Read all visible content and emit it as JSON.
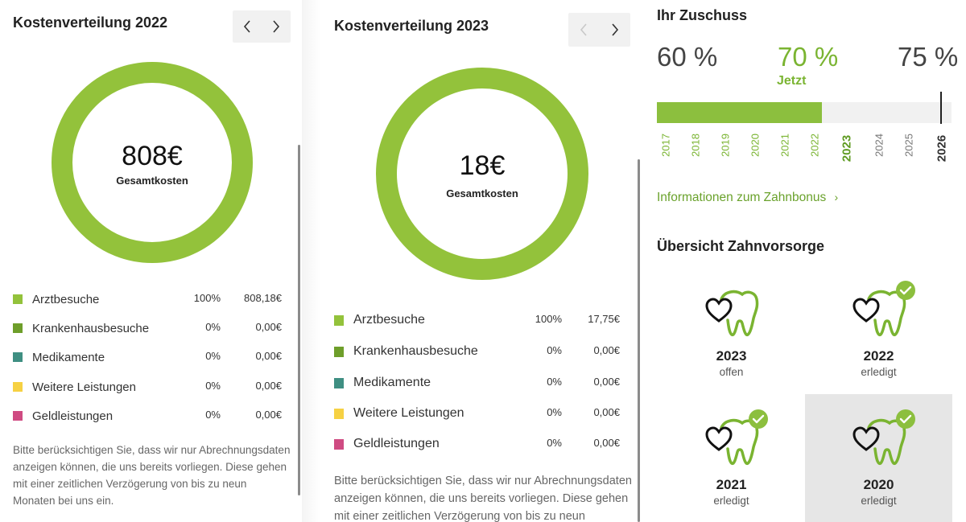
{
  "colors": {
    "arztbesuche": "#93c23b",
    "krankenhausbesuche": "#6e9e2a",
    "medikamente": "#3f8f82",
    "weitere": "#f6d143",
    "geldleistungen": "#cf4b82",
    "accent": "#7ab431"
  },
  "card2022": {
    "title": "Kostenverteilung 2022",
    "donut": {
      "value": "808€",
      "label": "Gesamtkosten"
    },
    "legend": [
      {
        "name": "Arztbesuche",
        "pct": "100%",
        "amount": "808,18€"
      },
      {
        "name": "Krankenhausbesuche",
        "pct": "0%",
        "amount": "0,00€"
      },
      {
        "name": "Medikamente",
        "pct": "0%",
        "amount": "0,00€"
      },
      {
        "name": "Weitere Leistungen",
        "pct": "0%",
        "amount": "0,00€"
      },
      {
        "name": "Geldleistungen",
        "pct": "0%",
        "amount": "0,00€"
      }
    ],
    "disclaimer": "Bitte berücksichtigen Sie, dass wir nur Abrechnungsdaten anzeigen können, die uns bereits vorliegen. Diese gehen mit einer zeitlichen Verzögerung von bis zu neun Monaten bei uns ein."
  },
  "card2023": {
    "title": "Kostenverteilung 2023",
    "donut": {
      "value": "18€",
      "label": "Gesamtkosten"
    },
    "legend": [
      {
        "name": "Arztbesuche",
        "pct": "100%",
        "amount": "17,75€"
      },
      {
        "name": "Krankenhausbesuche",
        "pct": "0%",
        "amount": "0,00€"
      },
      {
        "name": "Medikamente",
        "pct": "0%",
        "amount": "0,00€"
      },
      {
        "name": "Weitere Leistungen",
        "pct": "0%",
        "amount": "0,00€"
      },
      {
        "name": "Geldleistungen",
        "pct": "0%",
        "amount": "0,00€"
      }
    ],
    "disclaimer": "Bitte berücksichtigen Sie, dass wir nur Abrechnungsdaten anzeigen können, die uns bereits vorliegen. Diese gehen mit einer zeitlichen Verzögerung von bis zu neun Monaten bei uns ein."
  },
  "zuschuss": {
    "title": "Ihr Zuschuss",
    "levels": [
      {
        "value": "60 %"
      },
      {
        "value": "70 %",
        "note": "Jetzt"
      },
      {
        "value": "75 %"
      }
    ],
    "progress_fraction": 0.56,
    "years": [
      "2017",
      "2018",
      "2019",
      "2020",
      "2021",
      "2022",
      "2023",
      "2024",
      "2025",
      "2026"
    ],
    "current_year": "2023",
    "target_year": "2026",
    "info_link": "Informationen zum Zahnbonus"
  },
  "vorsorge": {
    "title": "Übersicht Zahnvorsorge",
    "tiles": [
      {
        "year": "2023",
        "status": "offen",
        "done": false
      },
      {
        "year": "2022",
        "status": "erledigt",
        "done": true
      },
      {
        "year": "2021",
        "status": "erledigt",
        "done": true
      },
      {
        "year": "2020",
        "status": "erledigt",
        "done": true
      }
    ]
  }
}
